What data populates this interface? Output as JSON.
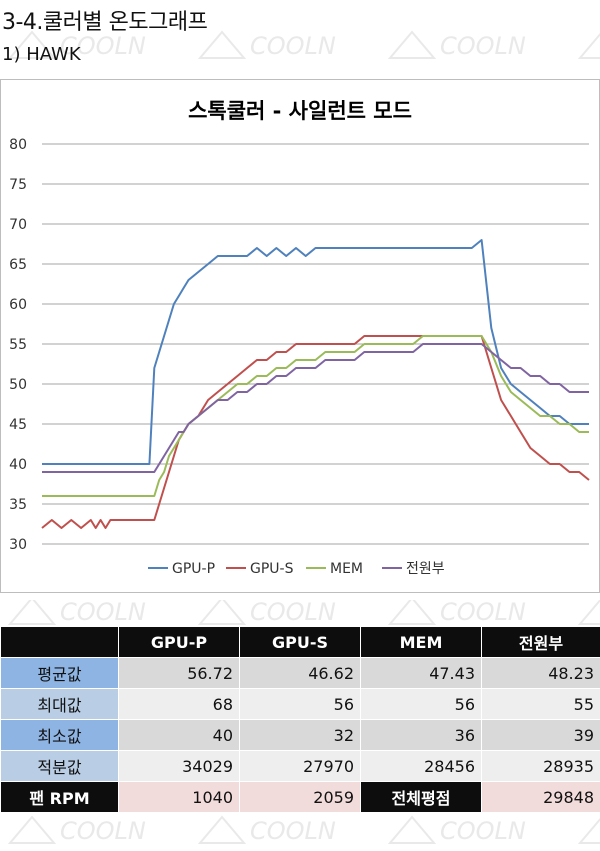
{
  "header": {
    "title": "3-4.쿨러별  온도그래프",
    "subtitle": "1) HAWK"
  },
  "chart_data": {
    "type": "line",
    "title": "스톡쿨러 - 사일런트 모드",
    "ylim": [
      30,
      80
    ],
    "yticks": [
      30,
      35,
      40,
      45,
      50,
      55,
      60,
      65,
      70,
      75,
      80
    ],
    "grid": true,
    "legend_position": "bottom",
    "x": [
      0,
      10,
      20,
      30,
      40,
      50,
      55,
      60,
      65,
      70,
      75,
      80,
      85,
      90,
      95,
      100,
      105,
      110,
      115,
      120,
      125,
      130,
      135,
      140,
      145,
      150,
      160,
      170,
      180,
      190,
      200,
      210,
      220,
      230,
      240,
      250,
      260,
      270,
      280,
      290,
      300,
      310,
      320,
      330,
      340,
      350,
      360,
      370,
      380,
      390,
      400,
      410,
      420,
      430,
      440,
      450,
      460,
      470,
      480,
      490,
      500,
      510,
      520,
      530,
      540,
      550,
      560
    ],
    "series": [
      {
        "name": "GPU-P",
        "color": "#4f81bd",
        "values": [
          40,
          40,
          40,
          40,
          40,
          40,
          40,
          40,
          40,
          40,
          40,
          40,
          40,
          40,
          40,
          40,
          40,
          40,
          52,
          54,
          56,
          58,
          60,
          61,
          62,
          63,
          64,
          65,
          66,
          66,
          66,
          66,
          67,
          66,
          67,
          66,
          67,
          66,
          67,
          67,
          67,
          67,
          67,
          67,
          67,
          67,
          67,
          67,
          67,
          67,
          67,
          67,
          67,
          67,
          67,
          68,
          57,
          52,
          50,
          49,
          48,
          47,
          46,
          46,
          45,
          45,
          45
        ]
      },
      {
        "name": "GPU-S",
        "color": "#c0504d",
        "values": [
          32,
          33,
          32,
          33,
          32,
          33,
          32,
          33,
          32,
          33,
          33,
          33,
          33,
          33,
          33,
          33,
          33,
          33,
          33,
          35,
          37,
          39,
          41,
          43,
          44,
          45,
          46,
          48,
          49,
          50,
          51,
          52,
          53,
          53,
          54,
          54,
          55,
          55,
          55,
          55,
          55,
          55,
          55,
          56,
          56,
          56,
          56,
          56,
          56,
          56,
          56,
          56,
          56,
          56,
          56,
          56,
          52,
          48,
          46,
          44,
          42,
          41,
          40,
          40,
          39,
          39,
          38
        ]
      },
      {
        "name": "MEM",
        "color": "#9bbb59",
        "values": [
          36,
          36,
          36,
          36,
          36,
          36,
          36,
          36,
          36,
          36,
          36,
          36,
          36,
          36,
          36,
          36,
          36,
          36,
          36,
          38,
          39,
          41,
          42,
          43,
          44,
          45,
          46,
          47,
          48,
          49,
          50,
          50,
          51,
          51,
          52,
          52,
          53,
          53,
          53,
          54,
          54,
          54,
          54,
          55,
          55,
          55,
          55,
          55,
          55,
          56,
          56,
          56,
          56,
          56,
          56,
          56,
          54,
          51,
          49,
          48,
          47,
          46,
          46,
          45,
          45,
          44,
          44
        ]
      },
      {
        "name": "전원부",
        "color": "#8064a2",
        "values": [
          39,
          39,
          39,
          39,
          39,
          39,
          39,
          39,
          39,
          39,
          39,
          39,
          39,
          39,
          39,
          39,
          39,
          39,
          39,
          40,
          41,
          42,
          43,
          44,
          44,
          45,
          46,
          47,
          48,
          48,
          49,
          49,
          50,
          50,
          51,
          51,
          52,
          52,
          52,
          53,
          53,
          53,
          53,
          54,
          54,
          54,
          54,
          54,
          54,
          55,
          55,
          55,
          55,
          55,
          55,
          55,
          54,
          53,
          52,
          52,
          51,
          51,
          50,
          50,
          49,
          49,
          49
        ]
      }
    ]
  },
  "table": {
    "headers": [
      "",
      "GPU-P",
      "GPU-S",
      "MEM",
      "전원부"
    ],
    "rows": [
      {
        "label": "평균값",
        "values": [
          "56.72",
          "46.62",
          "47.43",
          "48.23"
        ]
      },
      {
        "label": "최대값",
        "values": [
          "68",
          "56",
          "56",
          "55"
        ]
      },
      {
        "label": "최소값",
        "values": [
          "40",
          "32",
          "36",
          "39"
        ]
      },
      {
        "label": "적분값",
        "values": [
          "34029",
          "27970",
          "28456",
          "28935"
        ]
      }
    ],
    "footer": {
      "fan_label": "팬 RPM",
      "fan_values": [
        "1040",
        "2059"
      ],
      "score_label": "전체평점",
      "score_value": "29848"
    }
  },
  "watermark": {
    "text": "COOLN",
    "color": "#e9e9e9"
  }
}
